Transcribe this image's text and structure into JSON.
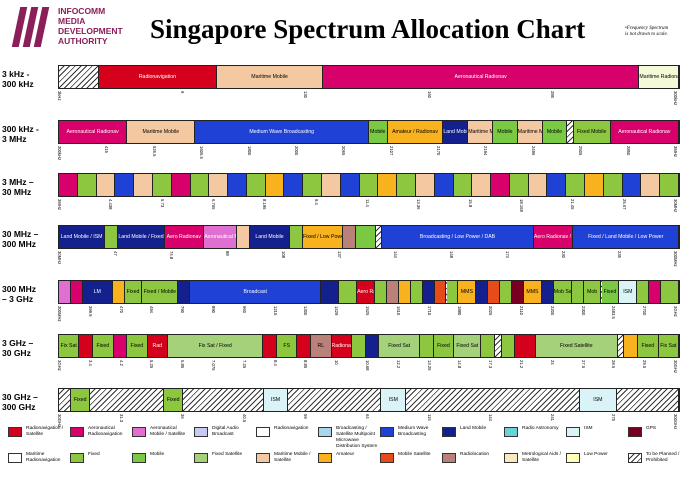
{
  "header": {
    "logo_lines": [
      "INFOCOMM",
      "MEDIA",
      "DEVELOPMENT",
      "AUTHORITY"
    ],
    "title": "Singapore Spectrum Allocation Chart",
    "note_lines": [
      "•Frequency Spectrum",
      "is not drawn to scale."
    ]
  },
  "colors": {
    "radionavigation": "#d4001c",
    "aeronautical_radionavigation": "#d8006a",
    "aeronautical_mobile_satellite": "#e06fd2",
    "digital_audio_broadcast": "#c6cbf4",
    "radionavigation_light": "#ffffff",
    "broadcasting_satellite": "#a9d5ee",
    "medium_wave_broadcasting": "#1f41d6",
    "land_mobile": "#14208e",
    "radio_astronomy": "#6ad2d2",
    "ism": "#d9f3f7",
    "gps": "#7a0022",
    "maritime_radionavigation": "#ffffff",
    "fixed": "#8dc63f",
    "mobile": "#7ac943",
    "fixed_satellite": "#a5d17b",
    "maritime_mobile_satellite": "#f4c8a0",
    "amateur": "#f7b21e",
    "mobile_satellite": "#e84b1a",
    "radiolocation": "#b9817a",
    "meteorological_aids": "#f9e9c3",
    "low_power": "#ffffb8",
    "to_be_planned": "hatch"
  },
  "rows": [
    {
      "label_lines": [
        "3 kHz -",
        "300 kHz"
      ],
      "segments": [
        {
          "w": 6,
          "c": "hatch"
        },
        {
          "w": 18,
          "c": "#d4001c",
          "t": "Radionavigation",
          "light": true
        },
        {
          "w": 16,
          "c": "#f4c8a0",
          "t": "Maritime Mobile"
        },
        {
          "w": 48,
          "c": "#d8006a",
          "t": "Aeronautical Radionav",
          "light": true
        },
        {
          "w": 6,
          "c": "#f4f9d8",
          "t": "Maritime Radionav"
        }
      ],
      "ticks": [
        "3kHz",
        "9",
        "130",
        "160",
        "285",
        "300kHz"
      ]
    },
    {
      "label_lines": [
        "300 kHz -",
        "3 MHz"
      ],
      "segments": [
        {
          "w": 11,
          "c": "#d8006a",
          "t": "Aeronautical Radionav",
          "light": true
        },
        {
          "w": 11,
          "c": "#f4c8a0",
          "t": "Maritime Mobile"
        },
        {
          "w": 28,
          "c": "#1f41d6",
          "t": "Medium Wave Broadcasting",
          "light": true
        },
        {
          "w": 3,
          "c": "#7ac943",
          "t": "Mobile"
        },
        {
          "w": 9,
          "c": "#f7b21e",
          "t": "Amateur / Radionav"
        },
        {
          "w": 4,
          "c": "#14208e",
          "t": "Land Mobile",
          "light": true
        },
        {
          "w": 4,
          "c": "#f4c8a0",
          "t": "Maritime Mobile"
        },
        {
          "w": 4,
          "c": "#7ac943",
          "t": "Mobile"
        },
        {
          "w": 4,
          "c": "#f4c8a0",
          "t": "Maritime Mobile"
        },
        {
          "w": 4,
          "c": "#7ac943",
          "t": "Mobile"
        },
        {
          "w": 1,
          "c": "hatch"
        },
        {
          "w": 6,
          "c": "#8dc63f",
          "t": "Fixed Mobile"
        },
        {
          "w": 11,
          "c": "#d8006a",
          "t": "Aeronautical Radionav",
          "light": true
        }
      ],
      "ticks": [
        "300kHz",
        "415",
        "526.5",
        "1606.5",
        "1800",
        "2000",
        "2065",
        "2107",
        "2170",
        "2194",
        "2495",
        "2505",
        "2850",
        "3MHz"
      ]
    },
    {
      "label_lines": [
        "3 MHz –",
        "30 MHz"
      ],
      "segments": [
        {
          "w": 3,
          "c": "#d8006a"
        },
        {
          "w": 3,
          "c": "#8dc63f"
        },
        {
          "w": 3,
          "c": "#f4c8a0"
        },
        {
          "w": 3,
          "c": "#1f41d6"
        },
        {
          "w": 3,
          "c": "#f4c8a0"
        },
        {
          "w": 3,
          "c": "#8dc63f"
        },
        {
          "w": 3,
          "c": "#d8006a"
        },
        {
          "w": 3,
          "c": "#8dc63f"
        },
        {
          "w": 3,
          "c": "#f4c8a0"
        },
        {
          "w": 3,
          "c": "#1f41d6"
        },
        {
          "w": 3,
          "c": "#8dc63f"
        },
        {
          "w": 3,
          "c": "#f7b21e"
        },
        {
          "w": 3,
          "c": "#1f41d6"
        },
        {
          "w": 3,
          "c": "#8dc63f"
        },
        {
          "w": 3,
          "c": "#f4c8a0"
        },
        {
          "w": 3,
          "c": "#1f41d6"
        },
        {
          "w": 3,
          "c": "#8dc63f"
        },
        {
          "w": 3,
          "c": "#f7b21e"
        },
        {
          "w": 3,
          "c": "#8dc63f"
        },
        {
          "w": 3,
          "c": "#f4c8a0"
        },
        {
          "w": 3,
          "c": "#1f41d6"
        },
        {
          "w": 3,
          "c": "#8dc63f"
        },
        {
          "w": 3,
          "c": "#f4c8a0"
        },
        {
          "w": 3,
          "c": "#d8006a"
        },
        {
          "w": 3,
          "c": "#8dc63f"
        },
        {
          "w": 3,
          "c": "#f4c8a0"
        },
        {
          "w": 3,
          "c": "#1f41d6"
        },
        {
          "w": 3,
          "c": "#8dc63f"
        },
        {
          "w": 3,
          "c": "#f7b21e"
        },
        {
          "w": 3,
          "c": "#8dc63f"
        },
        {
          "w": 3,
          "c": "#1f41d6"
        },
        {
          "w": 3,
          "c": "#f4c8a0"
        },
        {
          "w": 3,
          "c": "#8dc63f"
        }
      ],
      "ticks": [
        "3MHz",
        "4.438",
        "5.73",
        "6.765",
        "8.195",
        "9.4",
        "11.4",
        "13.36",
        "15.8",
        "18.168",
        "21.45",
        "25.67",
        "30MHz"
      ]
    },
    {
      "label_lines": [
        "30 MHz –",
        "300 MHz"
      ],
      "segments": [
        {
          "w": 7,
          "c": "#14208e",
          "t": "Land Mobile / ISM",
          "light": true
        },
        {
          "w": 2,
          "c": "#8dc63f"
        },
        {
          "w": 7,
          "c": "#14208e",
          "t": "Land Mobile / Fixed",
          "light": true
        },
        {
          "w": 6,
          "c": "#d8006a",
          "t": "Aero Radionav",
          "light": true
        },
        {
          "w": 5,
          "c": "#e06fd2",
          "t": "Aeronautical Mobile",
          "light": true
        },
        {
          "w": 2,
          "c": "#f4c8a0"
        },
        {
          "w": 6,
          "c": "#14208e",
          "t": "Land Mobile",
          "light": true
        },
        {
          "w": 2,
          "c": "#8dc63f"
        },
        {
          "w": 6,
          "c": "#f7b21e",
          "t": "Fixed / Low Power"
        },
        {
          "w": 2,
          "c": "#b9817a"
        },
        {
          "w": 3,
          "c": "#7ac943"
        },
        {
          "w": 1,
          "c": "hatch"
        },
        {
          "w": 23,
          "c": "#1f41d6",
          "t": "Broadcasting / Low Power / DAB",
          "light": true
        },
        {
          "w": 6,
          "c": "#d8006a",
          "t": "Aero Radionav / Fixed",
          "light": true
        },
        {
          "w": 16,
          "c": "#1f41d6",
          "t": "Fixed / Land Mobile / Low Power",
          "light": true
        }
      ],
      "ticks": [
        "30MHz",
        "47",
        "74.8",
        "88",
        "108",
        "137",
        "144",
        "148",
        "174",
        "230",
        "235",
        "300MHz"
      ]
    },
    {
      "label_lines": [
        "300 MHz",
        "– 3 GHz"
      ],
      "segments": [
        {
          "w": 2,
          "c": "#e06fd2"
        },
        {
          "w": 2,
          "c": "#d8006a"
        },
        {
          "w": 5,
          "c": "#14208e",
          "t": "LM",
          "light": true
        },
        {
          "w": 2,
          "c": "#f7b21e"
        },
        {
          "w": 3,
          "c": "#8dc63f",
          "t": "Fixed"
        },
        {
          "w": 6,
          "c": "#8dc63f",
          "t": "Fixed / Mobile"
        },
        {
          "w": 2,
          "c": "#14208e"
        },
        {
          "w": 22,
          "c": "#1f41d6",
          "t": "Broadcast",
          "light": true
        },
        {
          "w": 3,
          "c": "#14208e"
        },
        {
          "w": 3,
          "c": "#8dc63f"
        },
        {
          "w": 3,
          "c": "#d4001c",
          "t": "Aero Radi",
          "light": true
        },
        {
          "w": 2,
          "c": "#8dc63f"
        },
        {
          "w": 2,
          "c": "#b9817a"
        },
        {
          "w": 2,
          "c": "#f7b21e"
        },
        {
          "w": 2,
          "c": "#8dc63f"
        },
        {
          "w": 2,
          "c": "#14208e"
        },
        {
          "w": 2,
          "c": "#e84b1a"
        },
        {
          "w": 2,
          "c": "#8dc63f"
        },
        {
          "w": 3,
          "c": "#f7b21e",
          "t": "MMS"
        },
        {
          "w": 2,
          "c": "#14208e"
        },
        {
          "w": 2,
          "c": "#e84b1a"
        },
        {
          "w": 2,
          "c": "#8dc63f"
        },
        {
          "w": 2,
          "c": "#7a0022"
        },
        {
          "w": 3,
          "c": "#f7b21e",
          "t": "MMS"
        },
        {
          "w": 2,
          "c": "#14208e"
        },
        {
          "w": 3,
          "c": "#8dc63f",
          "t": "Mob Sat"
        },
        {
          "w": 2,
          "c": "#8dc63f"
        },
        {
          "w": 3,
          "c": "#8dc63f",
          "t": "Mob"
        },
        {
          "w": 3,
          "c": "#7ac943",
          "t": "Fixed"
        },
        {
          "w": 3,
          "c": "#d9f3f7",
          "t": "ISM"
        },
        {
          "w": 2,
          "c": "#8dc63f"
        },
        {
          "w": 2,
          "c": "#d8006a"
        },
        {
          "w": 3,
          "c": "#8dc63f"
        }
      ],
      "ticks": [
        "300MHz",
        "399.9",
        "470",
        "494",
        "790",
        "890",
        "960",
        "1215",
        "1300",
        "1429",
        "1525",
        "1610",
        "1710",
        "1880",
        "2025",
        "2110",
        "2200",
        "2300",
        "2483.5",
        "2700",
        "3GHz"
      ]
    },
    {
      "label_lines": [
        "3 GHz –",
        "30 GHz"
      ],
      "segments": [
        {
          "w": 3,
          "c": "#8dc63f",
          "t": "Fix Sat"
        },
        {
          "w": 2,
          "c": "#d4001c"
        },
        {
          "w": 3,
          "c": "#8dc63f",
          "t": "Fixed"
        },
        {
          "w": 2,
          "c": "#d8006a"
        },
        {
          "w": 3,
          "c": "#8dc63f",
          "t": "Fixed"
        },
        {
          "w": 3,
          "c": "#d4001c",
          "t": "Rad",
          "light": true
        },
        {
          "w": 14,
          "c": "#a5d17b",
          "t": "Fix Sat / Fixed"
        },
        {
          "w": 2,
          "c": "#d4001c"
        },
        {
          "w": 3,
          "c": "#8dc63f",
          "t": "FS"
        },
        {
          "w": 2,
          "c": "#d4001c"
        },
        {
          "w": 3,
          "c": "#b9817a",
          "t": "RL"
        },
        {
          "w": 3,
          "c": "#d4001c",
          "t": "Radionav",
          "light": true
        },
        {
          "w": 2,
          "c": "#8dc63f"
        },
        {
          "w": 2,
          "c": "#14208e"
        },
        {
          "w": 6,
          "c": "#a5d17b",
          "t": "Fixed Sat"
        },
        {
          "w": 2,
          "c": "#8dc63f"
        },
        {
          "w": 3,
          "c": "#8dc63f",
          "t": "Fixed"
        },
        {
          "w": 4,
          "c": "#a5d17b",
          "t": "Fixed Sat"
        },
        {
          "w": 2,
          "c": "#8dc63f"
        },
        {
          "w": 1,
          "c": "hatch"
        },
        {
          "w": 2,
          "c": "#8dc63f"
        },
        {
          "w": 3,
          "c": "#d4001c"
        },
        {
          "w": 12,
          "c": "#a5d17b",
          "t": "Fixed Satellite"
        },
        {
          "w": 1,
          "c": "hatch"
        },
        {
          "w": 2,
          "c": "#f7b21e"
        },
        {
          "w": 3,
          "c": "#8dc63f",
          "t": "Fixed"
        },
        {
          "w": 3,
          "c": "#8dc63f",
          "t": "Fix Sat"
        }
      ],
      "ticks": [
        "3GHz",
        "3.4",
        "4.2",
        "5.25",
        "5.85",
        "7.075",
        "7.25",
        "8.4",
        "8.85",
        "10",
        "10.68",
        "12.2",
        "13.25",
        "14.8",
        "17.3",
        "21.2",
        "24",
        "27.5",
        "28.5",
        "29.5",
        "30GHz"
      ]
    },
    {
      "label_lines": [
        "30 GHz –",
        "300 GHz"
      ],
      "segments": [
        {
          "w": 2,
          "c": "hatch"
        },
        {
          "w": 3,
          "c": "#8dc63f",
          "t": "Fixed"
        },
        {
          "w": 12,
          "c": "hatch"
        },
        {
          "w": 3,
          "c": "#8dc63f",
          "t": "Fixed"
        },
        {
          "w": 13,
          "c": "hatch"
        },
        {
          "w": 4,
          "c": "#d9f3f7",
          "t": "ISM"
        },
        {
          "w": 15,
          "c": "hatch"
        },
        {
          "w": 4,
          "c": "#d9f3f7",
          "t": "ISM"
        },
        {
          "w": 28,
          "c": "hatch"
        },
        {
          "w": 6,
          "c": "#d9f3f7",
          "t": "ISM"
        },
        {
          "w": 10,
          "c": "hatch"
        }
      ],
      "ticks": [
        "30GHz",
        "31.3",
        "36",
        "40.5",
        "59",
        "64",
        "116",
        "144",
        "241",
        "275",
        "300GHz"
      ]
    }
  ],
  "legend": [
    {
      "c": "#d4001c",
      "t": "Radionavigation / Satellite"
    },
    {
      "c": "#d8006a",
      "t": "Aeronautical Radionavigation"
    },
    {
      "c": "#e06fd2",
      "t": "Aeronautical Mobile / Satellite"
    },
    {
      "c": "#c6cbf4",
      "t": "Digital Audio Broadcast"
    },
    {
      "c": "#ffffff",
      "t": "Radionavigation"
    },
    {
      "c": "#a9d5ee",
      "t": "Broadcasting / Satellite Multipoint Microwave Distribution System"
    },
    {
      "c": "#1f41d6",
      "t": "Medium Wave Broadcasting"
    },
    {
      "c": "#14208e",
      "t": "Land Mobile"
    },
    {
      "c": "#6ad2d2",
      "t": "Radio Astronomy"
    },
    {
      "c": "#d9f3f7",
      "t": "ISM"
    },
    {
      "c": "#7a0022",
      "t": "GPS"
    },
    {
      "c": "#ffffff",
      "t": "Maritime Radionavigation"
    },
    {
      "c": "#8dc63f",
      "t": "Fixed"
    },
    {
      "c": "#7ac943",
      "t": "Mobile"
    },
    {
      "c": "#a5d17b",
      "t": "Fixed Satellite"
    },
    {
      "c": "#f4c8a0",
      "t": "Maritime Mobile / Satellite"
    },
    {
      "c": "#f7b21e",
      "t": "Amateur"
    },
    {
      "c": "#e84b1a",
      "t": "Mobile Satellite"
    },
    {
      "c": "#b9817a",
      "t": "Radiolocation"
    },
    {
      "c": "#f9e9c3",
      "t": "Metrological Aids / Satellite"
    },
    {
      "c": "#ffffb8",
      "t": "Low Power"
    },
    {
      "c": "hatch",
      "t": "To be Planned / Prohibited"
    }
  ]
}
